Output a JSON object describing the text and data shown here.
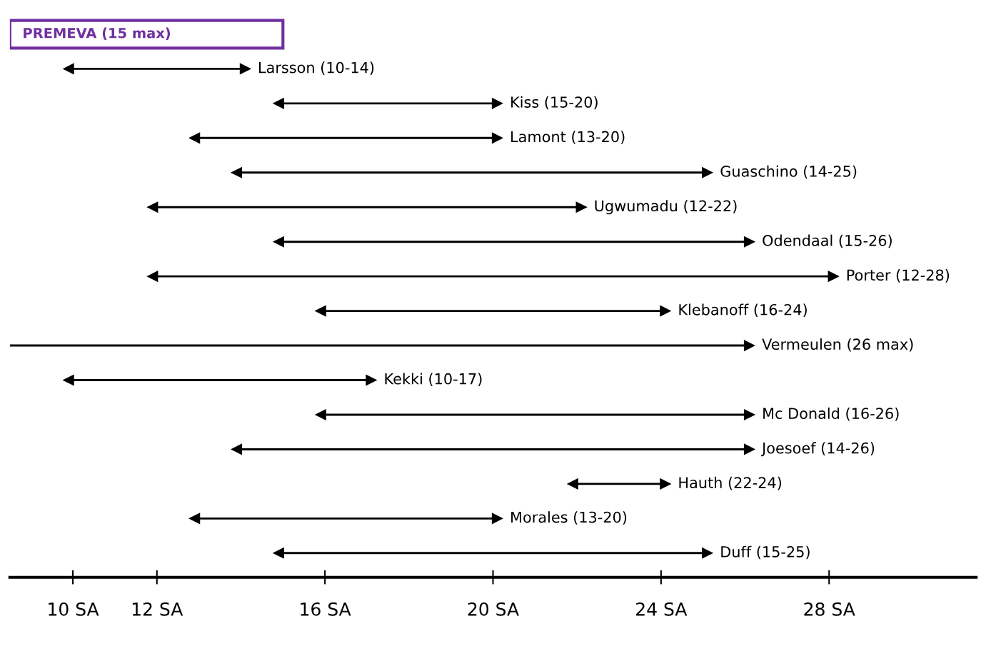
{
  "chart_data": {
    "type": "bar",
    "orientation": "horizontal",
    "categories": [
      "PREMEVA (15 max)",
      "Larsson (10-14)",
      "Kiss (15-20)",
      "Lamont (13-20)",
      "Guaschino (14-25)",
      "Ugwumadu (12-22)",
      "Odendaal (15-26)",
      "Porter (12-28)",
      "Klebanoff (16-24)",
      "Vermeulen (26 max)",
      "Kekki (10-17)",
      "Mc Donald (16-26)",
      "Joesoef (14-26)",
      "Hauth (22-24)",
      "Morales (13-20)",
      "Duff (15-25)"
    ],
    "base": [
      8.5,
      10,
      15,
      13,
      14,
      12,
      15,
      12,
      16,
      8.5,
      10,
      16,
      14,
      22,
      13,
      15
    ],
    "values": [
      6.5,
      4,
      5,
      7,
      11,
      10,
      11,
      16,
      8,
      17.5,
      7,
      10,
      12,
      2,
      7,
      10
    ],
    "colors": [
      "#7030a0",
      "#000000",
      "#000000",
      "#000000",
      "#000000",
      "#000000",
      "#000000",
      "#000000",
      "#000000",
      "#000000",
      "#000000",
      "#000000",
      "#000000",
      "#000000",
      "#000000",
      "#000000"
    ],
    "xlim": [
      8.5,
      31.5
    ],
    "xticks": [
      {
        "value": 10,
        "label": "10 SA"
      },
      {
        "value": 12,
        "label": "12 SA"
      },
      {
        "value": 16,
        "label": "16 SA"
      },
      {
        "value": 20,
        "label": "20 SA"
      },
      {
        "value": 24,
        "label": "24 SA"
      },
      {
        "value": 28,
        "label": "28 SA"
      }
    ],
    "tick_labels": "x",
    "grid": false,
    "legend": false
  }
}
